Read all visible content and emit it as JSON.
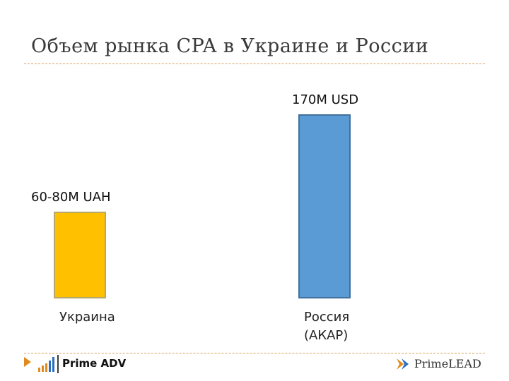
{
  "title": "Объем рынка CPA в Украине и России",
  "chart_data": {
    "type": "bar",
    "categories": [
      "Украина",
      "Россия (АКАР)"
    ],
    "category_lines": [
      [
        "Украина"
      ],
      [
        "Россия",
        "(АКАР)"
      ]
    ],
    "values": [
      80,
      170
    ],
    "value_labels": [
      "60-80M UAH",
      "170M USD"
    ],
    "bar_colors": [
      "#ffc000",
      "#5b9bd5"
    ],
    "bar_borders": [
      "#b7a76a",
      "#41719c"
    ],
    "title": "Объем рынка CPA в Украине и России",
    "xlabel": "",
    "ylabel": "",
    "grid": false,
    "legend": "none"
  },
  "footer": {
    "left_logo_text": "Prime ADV",
    "right_logo_text": "PrimeLEAD",
    "accent_color": "#e08a1e",
    "icons": [
      "play-arrow-icon",
      "bar-chart-logo-icon",
      "primelead-logo-icon"
    ]
  }
}
